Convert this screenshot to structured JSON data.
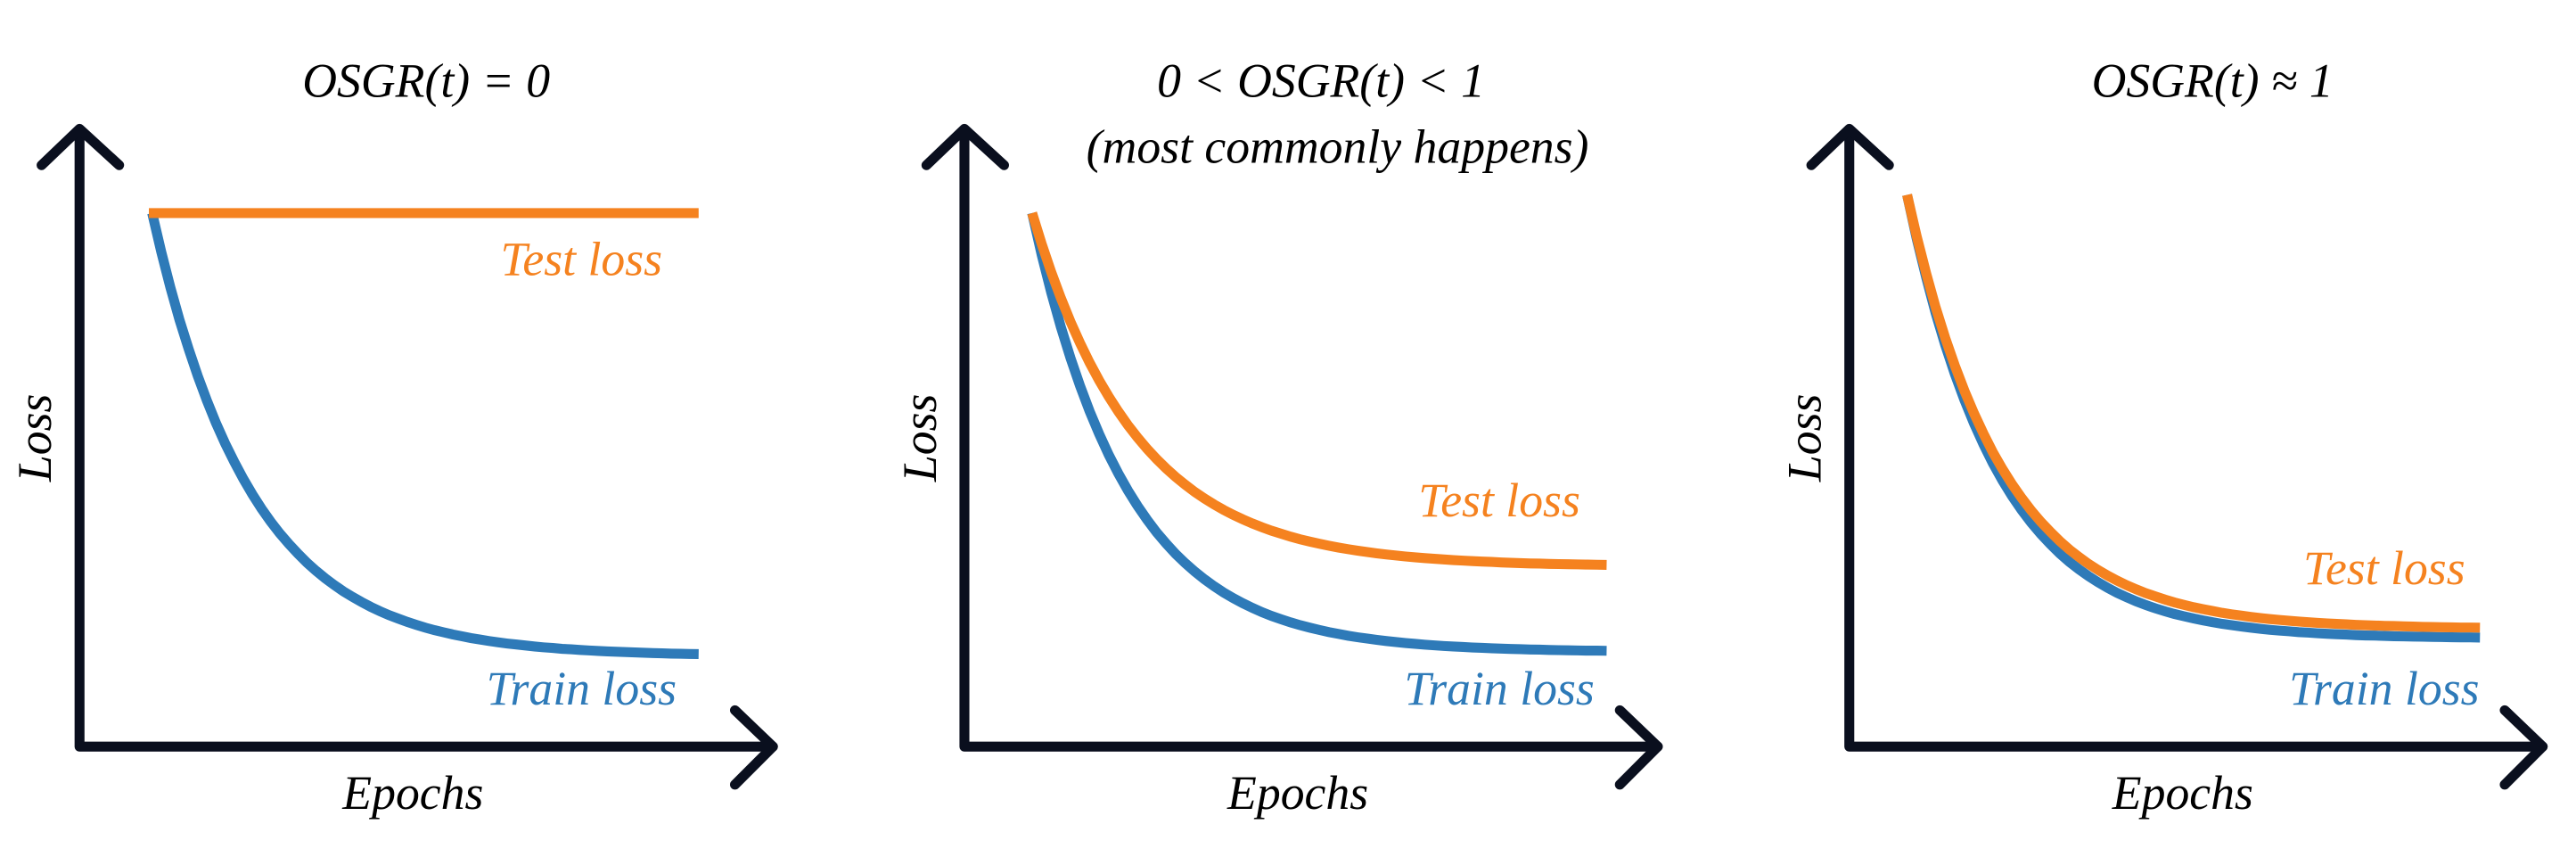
{
  "panels": [
    {
      "title": "OSGR(t) = 0",
      "y_label": "Loss",
      "x_label": "Epochs",
      "test_label": "Test loss",
      "train_label": "Train loss"
    },
    {
      "title": "0 < OSGR(t) < 1",
      "subtitle": "(most commonly happens)",
      "y_label": "Loss",
      "x_label": "Epochs",
      "test_label": "Test loss",
      "train_label": "Train loss"
    },
    {
      "title": "OSGR(t) ≈ 1",
      "y_label": "Loss",
      "x_label": "Epochs",
      "test_label": "Test loss",
      "train_label": "Train loss"
    }
  ]
}
